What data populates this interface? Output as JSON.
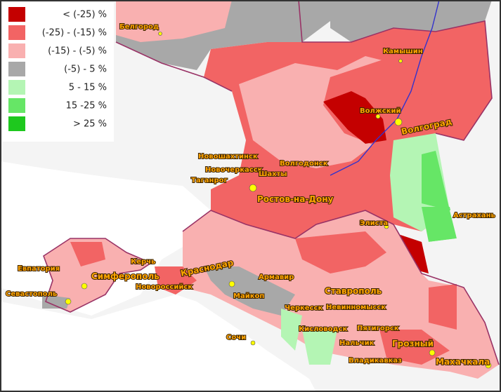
{
  "legend": {
    "items": [
      {
        "label": "< (-25) %",
        "color": "#c40000"
      },
      {
        "label": "(-25) - (-15) %",
        "color": "#f26464"
      },
      {
        "label": "(-15) - (-5) %",
        "color": "#f9b0b0"
      },
      {
        "label": "(-5) - 5 %",
        "color": "#a8a8a8"
      },
      {
        "label": "5 - 15 %",
        "color": "#b4f5b4"
      },
      {
        "label": "15 -25 %",
        "color": "#66e666"
      },
      {
        "label": "> 25 %",
        "color": "#1ec81e"
      }
    ]
  },
  "cities": [
    "Белгород",
    "Камышин",
    "Волжский",
    "Волгоград",
    "Новошахтинск",
    "Волгодонск",
    "Новочеркасск",
    "Шахты",
    "Таганрог",
    "Ростов-на-Дону",
    "Элиста",
    "Астрахань",
    "Керчь",
    "Евпатория",
    "Симферополь",
    "Краснодар",
    "Армавир",
    "Новороссийск",
    "Севастополь",
    "Майкоп",
    "Ставрополь",
    "Черкесск",
    "Невинномысск",
    "Кисловодск",
    "Пятигорск",
    "Сочи",
    "Нальчик",
    "Грозный",
    "Владикавказ",
    "Махачкала"
  ]
}
